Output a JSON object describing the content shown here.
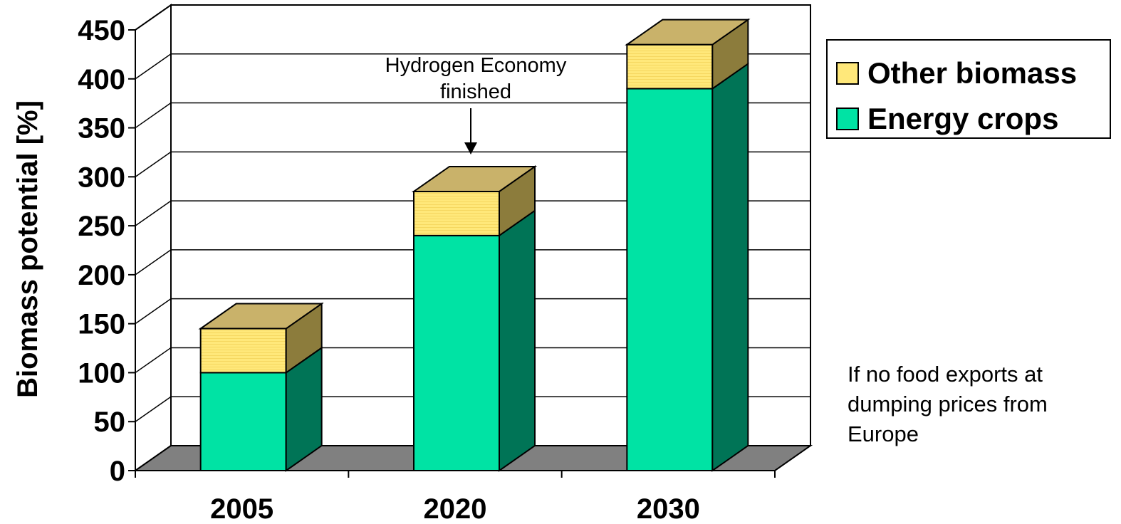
{
  "chart_data": {
    "type": "bar",
    "stacked": true,
    "three_d": true,
    "categories": [
      "2005",
      "2020",
      "2030"
    ],
    "series": [
      {
        "name": "Energy crops",
        "values": [
          100,
          240,
          390
        ],
        "color": "#00e3a4",
        "side_color": "#007456"
      },
      {
        "name": "Other biomass",
        "values": [
          45,
          45,
          45
        ],
        "color": "#ffe87a",
        "side_color": "#8c7c3c"
      }
    ],
    "ylabel": "Biomass potential [%]",
    "xlabel": "",
    "ylim": [
      0,
      450
    ],
    "yticks": [
      "0",
      "50",
      "100",
      "150",
      "200",
      "250",
      "300",
      "350",
      "400",
      "450"
    ],
    "grid": true,
    "legend_position": "right",
    "annotation": {
      "text_line1": "Hydrogen Economy",
      "text_line2": "finished",
      "target_category": "2020"
    }
  },
  "note": {
    "line1": "If no food exports at",
    "line2": "dumping prices from",
    "line3": "Europe"
  },
  "legend": {
    "item1_label": "Other biomass",
    "item1_color": "#ffe87a",
    "item2_label": "Energy crops",
    "item2_color": "#00e3a4"
  }
}
